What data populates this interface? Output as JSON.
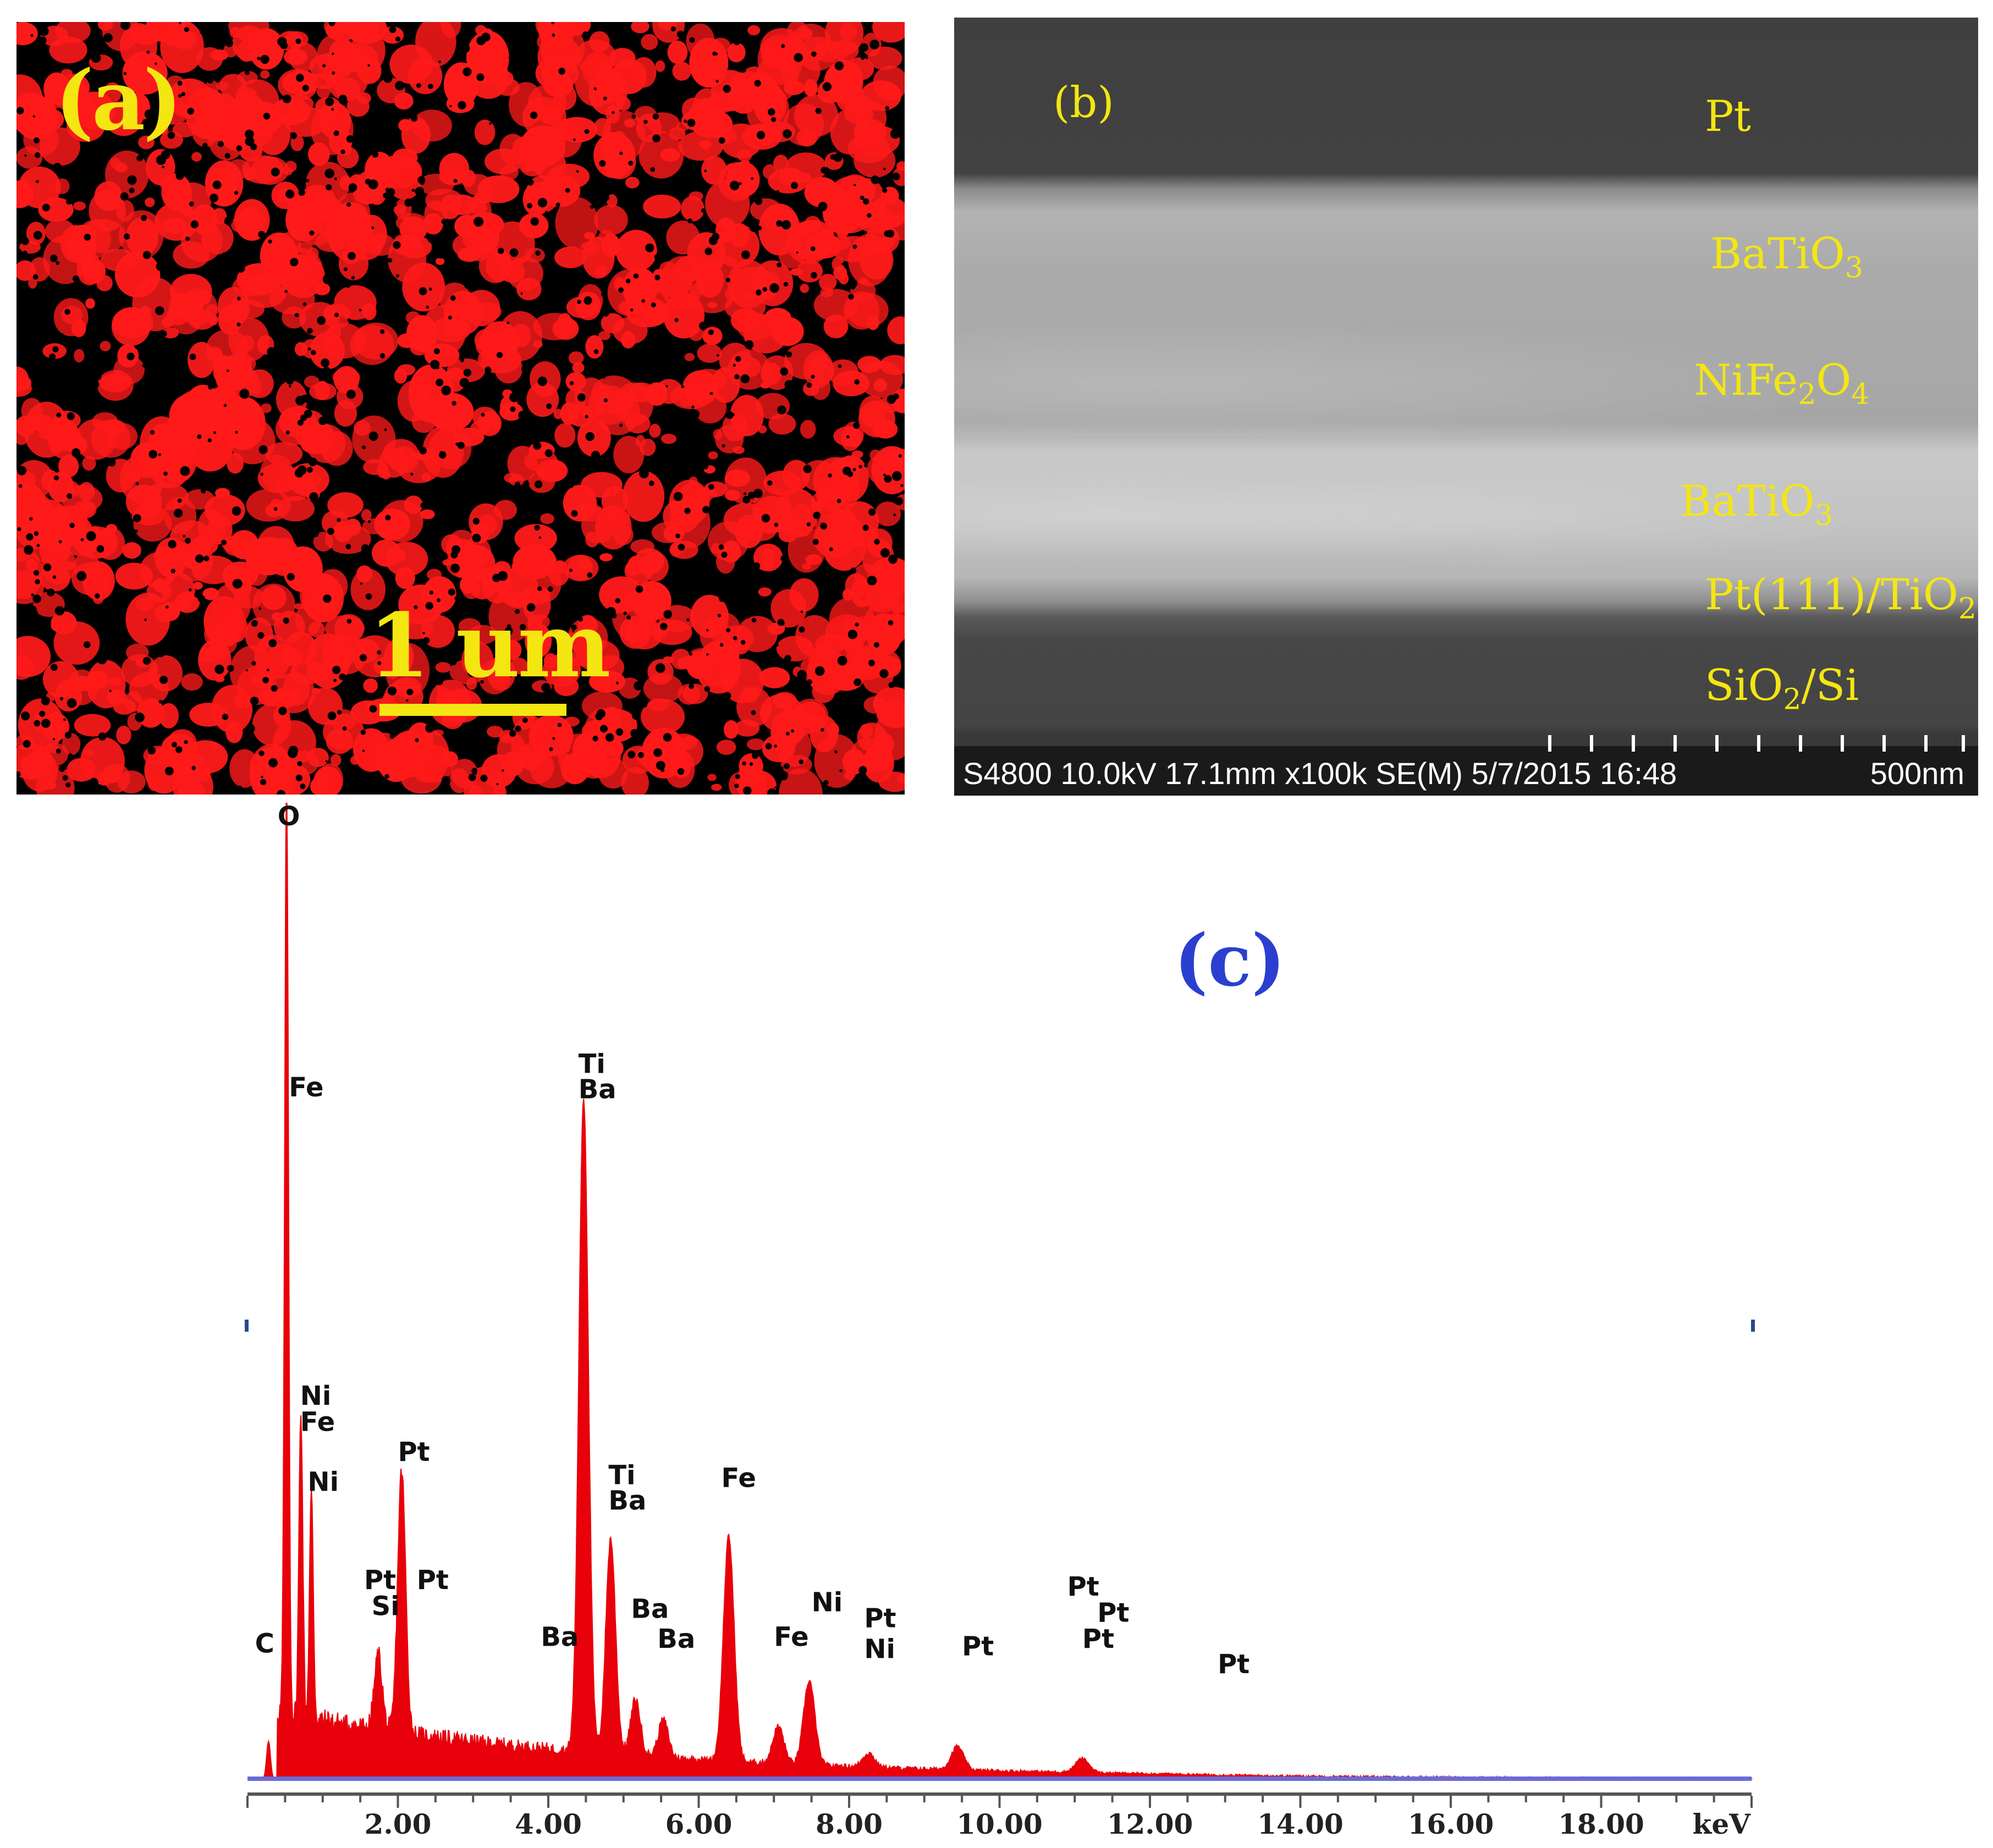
{
  "panel_a": {
    "label": "(a)",
    "scale_bar": "1 um",
    "map_color": "#ff1a1a"
  },
  "panel_b": {
    "label": "(b)",
    "layers": [
      {
        "base": "Pt",
        "sub": "",
        "tail": ""
      },
      {
        "base": "BaTiO",
        "sub": "3",
        "tail": ""
      },
      {
        "base": "NiFe",
        "sub": "2",
        "tail": "O",
        "sub2": "4"
      },
      {
        "base": "BaTiO",
        "sub": "3",
        "tail": ""
      },
      {
        "base": "Pt(111)/TiO",
        "sub": "2",
        "tail": ""
      },
      {
        "base": "SiO",
        "sub": "2",
        "tail": "/Si"
      }
    ],
    "info": "S4800 10.0kV 17.1mm x100k SE(M) 5/7/2015 16:48",
    "scale": "500nm"
  },
  "panel_c": {
    "label": "(c)",
    "chart_data": {
      "type": "line",
      "xlabel": "keV",
      "xlim": [
        0.0,
        20.0
      ],
      "x_ticks": [
        "2.00",
        "4.00",
        "6.00",
        "8.00",
        "10.00",
        "12.00",
        "14.00",
        "16.00",
        "18.00"
      ],
      "x_tick_values": [
        2,
        4,
        6,
        8,
        10,
        12,
        14,
        16,
        18
      ],
      "ylim": [
        0,
        100
      ],
      "color": "#e8000a",
      "baseline_color": "#6a6ad8",
      "peaks": [
        {
          "x": 0.28,
          "h": 4
        },
        {
          "x": 0.52,
          "h": 100
        },
        {
          "x": 0.71,
          "h": 33
        },
        {
          "x": 0.85,
          "h": 24
        },
        {
          "x": 1.74,
          "h": 8
        },
        {
          "x": 2.05,
          "h": 28
        },
        {
          "x": 4.47,
          "h": 70
        },
        {
          "x": 4.83,
          "h": 23
        },
        {
          "x": 5.16,
          "h": 6
        },
        {
          "x": 5.53,
          "h": 4
        },
        {
          "x": 6.4,
          "h": 24
        },
        {
          "x": 7.06,
          "h": 4
        },
        {
          "x": 7.47,
          "h": 9
        },
        {
          "x": 8.26,
          "h": 1.5
        },
        {
          "x": 9.44,
          "h": 2.5
        },
        {
          "x": 11.1,
          "h": 1.5
        }
      ],
      "annotations": [
        {
          "text": "O",
          "x": 0.4,
          "y": 102
        },
        {
          "text": "Fe",
          "x": 0.55,
          "y": 73
        },
        {
          "text": "Ti",
          "x": 4.4,
          "y": 75.5
        },
        {
          "text": "Ba",
          "x": 4.4,
          "y": 72.8
        },
        {
          "text": "Ni",
          "x": 0.7,
          "y": 40
        },
        {
          "text": "Fe",
          "x": 0.7,
          "y": 37.2
        },
        {
          "text": "Ni",
          "x": 0.8,
          "y": 30.8
        },
        {
          "text": "Pt",
          "x": 2.0,
          "y": 34
        },
        {
          "text": "Ti",
          "x": 4.8,
          "y": 31.5
        },
        {
          "text": "Ba",
          "x": 4.8,
          "y": 28.8
        },
        {
          "text": "Fe",
          "x": 6.3,
          "y": 31.2
        },
        {
          "text": "Pt",
          "x": 1.55,
          "y": 20.3
        },
        {
          "text": "Si",
          "x": 1.65,
          "y": 17.5
        },
        {
          "text": "Pt",
          "x": 2.25,
          "y": 20.3
        },
        {
          "text": "Ba",
          "x": 3.9,
          "y": 14.2
        },
        {
          "text": "Ba",
          "x": 5.1,
          "y": 17.2
        },
        {
          "text": "Ba",
          "x": 5.45,
          "y": 14.0
        },
        {
          "text": "Fe",
          "x": 7.0,
          "y": 14.2
        },
        {
          "text": "Ni",
          "x": 7.5,
          "y": 17.9
        },
        {
          "text": "Pt",
          "x": 8.2,
          "y": 16.2
        },
        {
          "text": "Ni",
          "x": 8.2,
          "y": 12.9
        },
        {
          "text": "Pt",
          "x": 9.5,
          "y": 13.2
        },
        {
          "text": "Pt",
          "x": 10.9,
          "y": 19.6
        },
        {
          "text": "Pt",
          "x": 11.3,
          "y": 16.8
        },
        {
          "text": "Pt",
          "x": 11.1,
          "y": 14.0
        },
        {
          "text": "Pt",
          "x": 12.9,
          "y": 11.3
        },
        {
          "text": "C",
          "x": 0.1,
          "y": 13.5
        }
      ]
    }
  }
}
